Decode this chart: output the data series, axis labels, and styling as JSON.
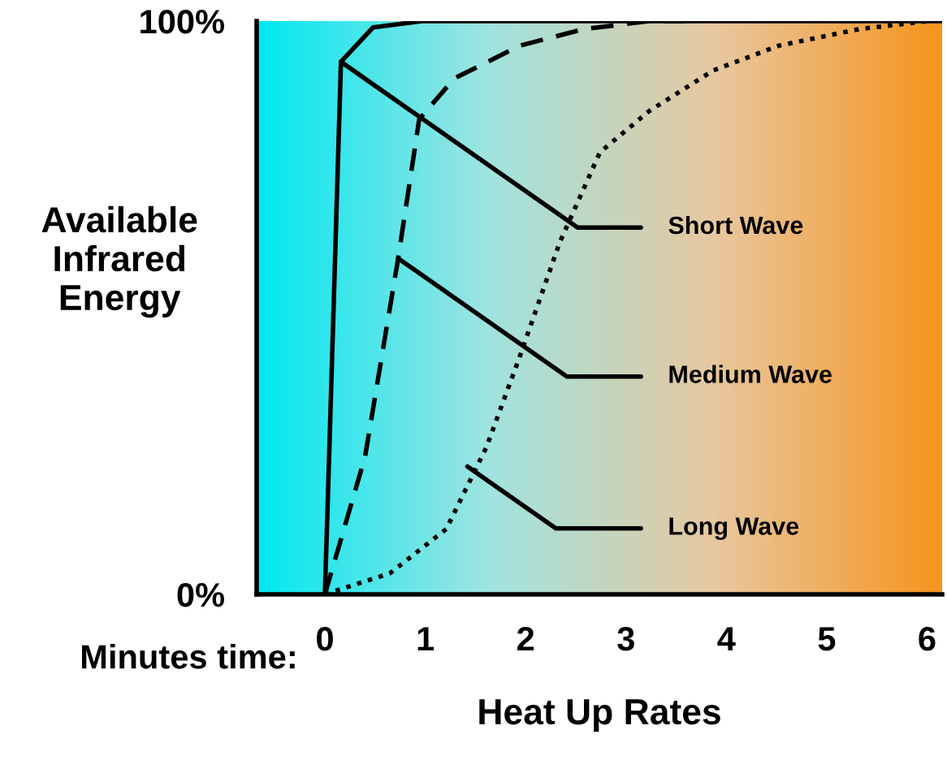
{
  "chart_data": {
    "type": "line",
    "xlabel": "Heat Up Rates",
    "ylabel": "Available\nInfrared\nEnergy",
    "xlim": [
      -0.68,
      6.15
    ],
    "ylim": [
      0,
      100
    ],
    "xticks": [
      0,
      1,
      2,
      3,
      4,
      5,
      6
    ],
    "yticks": [
      {
        "value": 0,
        "label": "0%"
      },
      {
        "value": 100,
        "label": "100%"
      }
    ],
    "grid": false,
    "marker": "none",
    "series": [
      {
        "color": "#000000",
        "line_style": "solid",
        "x": [
          0,
          0.05,
          0.16,
          0.48,
          0.97,
          1.9,
          6.15
        ],
        "values": [
          0,
          28.6,
          92.9,
          98.9,
          100,
          100,
          100
        ]
      },
      {
        "color": "#000000",
        "line_style": "dashed",
        "x": [
          0,
          0.4,
          0.73,
          0.94,
          1.29,
          1.94,
          2.58,
          3.23,
          3.7
        ],
        "values": [
          0,
          24,
          58.6,
          82.9,
          90,
          95.7,
          98.6,
          100,
          100
        ]
      },
      {
        "color": "#000000",
        "line_style": "dotted",
        "x": [
          0,
          0.65,
          1.21,
          1.61,
          1.94,
          2.34,
          2.74,
          3.23,
          3.87,
          4.52,
          5.32,
          6.0
        ],
        "values": [
          0,
          3.7,
          11.4,
          25.7,
          41.4,
          61.4,
          77.1,
          84.3,
          91.4,
          95.7,
          98.6,
          100
        ]
      }
    ],
    "annotations": [
      {
        "text": "Short Wave",
        "x": 0.16,
        "y": 92.9
      },
      {
        "text": "Medium Wave",
        "x": 0.73,
        "y": 58.6
      },
      {
        "text": "Long Wave",
        "x": 1.42,
        "y": 22.3
      },
      "Minutes time:"
    ]
  }
}
